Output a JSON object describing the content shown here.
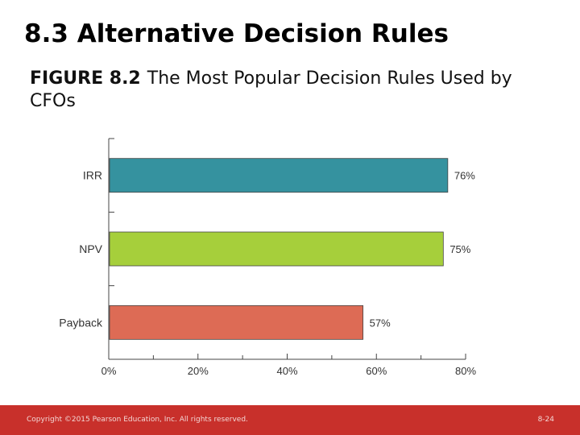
{
  "slide": {
    "title": "8.3 Alternative Decision Rules"
  },
  "figure": {
    "number": "FIGURE 8.2",
    "caption": "The Most Popular Decision Rules Used by CFOs"
  },
  "chart_data": {
    "type": "bar",
    "orientation": "horizontal",
    "categories": [
      "IRR",
      "NPV",
      "Payback"
    ],
    "values": [
      76,
      75,
      57
    ],
    "value_labels": [
      "76%",
      "75%",
      "57%"
    ],
    "colors": [
      "#35929f",
      "#a6cf3b",
      "#dd6b55"
    ],
    "xlim": [
      0,
      80
    ],
    "x_ticks": [
      0,
      20,
      40,
      60,
      80
    ],
    "x_tick_labels": [
      "0%",
      "20%",
      "40%",
      "60%",
      "80%"
    ],
    "title": "",
    "xlabel": "",
    "ylabel": "",
    "grid": false,
    "legend": "none"
  },
  "footer": {
    "copyright": "Copyright ©2015 Pearson Education, Inc. All rights reserved.",
    "page": "8-24"
  }
}
